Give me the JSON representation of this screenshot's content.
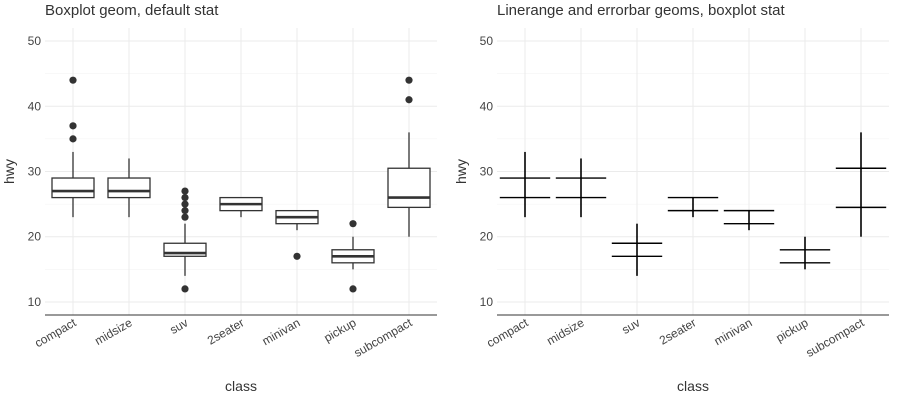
{
  "chart_data": [
    {
      "type": "boxplot",
      "title": "Boxplot geom, default stat",
      "xlabel": "class",
      "ylabel": "hwy",
      "ylim": [
        8,
        52
      ],
      "yticks": [
        10,
        20,
        30,
        40,
        50
      ],
      "grid": true,
      "categories": [
        "compact",
        "midsize",
        "suv",
        "2seater",
        "minivan",
        "pickup",
        "subcompact"
      ],
      "boxes": [
        {
          "lower": 23,
          "q1": 26,
          "median": 27,
          "q3": 29,
          "upper": 33,
          "outliers": [
            35,
            37,
            44
          ]
        },
        {
          "lower": 23,
          "q1": 26,
          "median": 27,
          "q3": 29,
          "upper": 32,
          "outliers": []
        },
        {
          "lower": 14,
          "q1": 17,
          "median": 17.5,
          "q3": 19,
          "upper": 22,
          "outliers": [
            12,
            23,
            24,
            25,
            26,
            27
          ]
        },
        {
          "lower": 23,
          "q1": 24,
          "median": 25,
          "q3": 26,
          "upper": 26,
          "outliers": []
        },
        {
          "lower": 21,
          "q1": 22,
          "median": 23,
          "q3": 24,
          "upper": 24,
          "outliers": [
            17
          ]
        },
        {
          "lower": 15,
          "q1": 16,
          "median": 17,
          "q3": 18,
          "upper": 20,
          "outliers": [
            12,
            22
          ]
        },
        {
          "lower": 20,
          "q1": 24.5,
          "median": 26,
          "q3": 30.5,
          "upper": 36,
          "outliers": [
            41,
            44
          ]
        }
      ]
    },
    {
      "type": "linerange-errorbar",
      "title": "Linerange and errorbar geoms, boxplot stat",
      "xlabel": "class",
      "ylabel": "hwy",
      "ylim": [
        8,
        52
      ],
      "yticks": [
        10,
        20,
        30,
        40,
        50
      ],
      "grid": true,
      "categories": [
        "compact",
        "midsize",
        "suv",
        "2seater",
        "minivan",
        "pickup",
        "subcompact"
      ],
      "ranges": [
        {
          "lower": 23,
          "q1": 26,
          "q3": 29,
          "upper": 33
        },
        {
          "lower": 23,
          "q1": 26,
          "q3": 29,
          "upper": 32
        },
        {
          "lower": 14,
          "q1": 17,
          "q3": 19,
          "upper": 22
        },
        {
          "lower": 23,
          "q1": 24,
          "q3": 26,
          "upper": 26
        },
        {
          "lower": 21,
          "q1": 22,
          "q3": 24,
          "upper": 24
        },
        {
          "lower": 15,
          "q1": 16,
          "q3": 18,
          "upper": 20
        },
        {
          "lower": 20,
          "q1": 24.5,
          "q3": 30.5,
          "upper": 36
        }
      ]
    }
  ]
}
